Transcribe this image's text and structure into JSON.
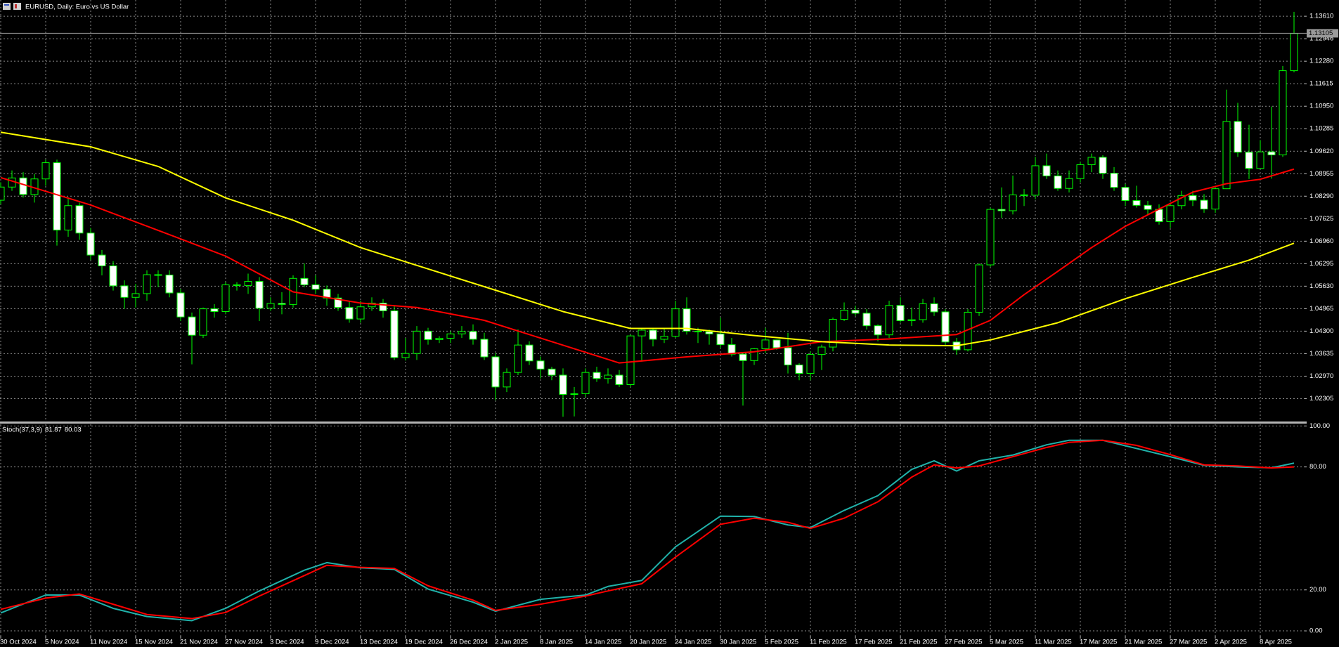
{
  "chart_data": [
    {
      "type": "candlestick",
      "title": "EURUSD, Daily:  Euro vs US Dollar",
      "categories": [
        "30 Oct 2024",
        null,
        null,
        null,
        "5 Nov 2024",
        null,
        null,
        null,
        "11 Nov 2024",
        null,
        null,
        null,
        "15 Nov 2024",
        null,
        null,
        null,
        "21 Nov 2024",
        null,
        null,
        null,
        "27 Nov 2024",
        null,
        null,
        null,
        "3 Dec 2024",
        null,
        null,
        null,
        "9 Dec 2024",
        null,
        null,
        null,
        "13 Dec 2024",
        null,
        null,
        null,
        "19 Dec 2024",
        null,
        null,
        null,
        "26 Dec 2024",
        null,
        null,
        null,
        "2 Jan 2025",
        null,
        null,
        null,
        "8 Jan 2025",
        null,
        null,
        null,
        "14 Jan 2025",
        null,
        null,
        null,
        "20 Jan 2025",
        null,
        null,
        null,
        "24 Jan 2025",
        null,
        null,
        null,
        "30 Jan 2025",
        null,
        null,
        null,
        "5 Feb 2025",
        null,
        null,
        null,
        "11 Feb 2025",
        null,
        null,
        null,
        "17 Feb 2025",
        null,
        null,
        null,
        "21 Feb 2025",
        null,
        null,
        null,
        "27 Feb 2025",
        null,
        null,
        null,
        "5 Mar 2025",
        null,
        null,
        null,
        "11 Mar 2025",
        null,
        null,
        null,
        "17 Mar 2025",
        null,
        null,
        null,
        "21 Mar 2025",
        null,
        null,
        null,
        "27 Mar 2025",
        null,
        null,
        null,
        "2 Apr 2025",
        null,
        null,
        null,
        "8 Apr 2025",
        null,
        null,
        null
      ],
      "open": [
        1.0817,
        1.0856,
        1.0883,
        1.0834,
        1.088,
        1.0928,
        1.0729,
        1.0801,
        1.072,
        1.0655,
        1.0623,
        1.0564,
        1.053,
        1.0541,
        1.0597,
        1.0596,
        1.0543,
        1.0472,
        1.0418,
        1.0496,
        1.0488,
        1.0567,
        1.0565,
        1.0577,
        1.0498,
        1.0512,
        1.0509,
        1.0586,
        1.0567,
        1.0554,
        1.0528,
        1.05,
        1.0466,
        1.0502,
        1.0513,
        1.049,
        1.0352,
        1.0364,
        1.043,
        1.0405,
        1.0409,
        1.0422,
        1.0429,
        1.0406,
        1.0354,
        1.0265,
        1.0308,
        1.0389,
        1.0342,
        1.0318,
        1.03,
        1.0243,
        1.0245,
        1.0308,
        1.029,
        1.03,
        1.0272,
        1.0416,
        1.0433,
        1.0406,
        1.0415,
        1.0496,
        1.043,
        1.0428,
        1.0422,
        1.039,
        1.0362,
        1.0343,
        1.0378,
        1.0404,
        1.0381,
        1.033,
        1.0305,
        1.0361,
        1.0383,
        1.0465,
        1.0492,
        1.0483,
        1.0446,
        1.0419,
        1.0506,
        1.0461,
        1.0464,
        1.0511,
        1.0487,
        1.0398,
        1.0375,
        1.0486,
        1.0626,
        1.079,
        1.0786,
        1.0833,
        1.0832,
        1.0919,
        1.0889,
        1.0852,
        1.0881,
        1.0922,
        1.0944,
        1.0897,
        1.0855,
        1.0816,
        1.0802,
        1.079,
        1.0754,
        1.0801,
        1.0831,
        1.0817,
        1.0791,
        1.0851,
        1.105,
        1.0959,
        1.0911,
        1.096,
        1.0951,
        1.12
      ],
      "high": [
        1.087,
        1.0905,
        1.09,
        1.0895,
        1.0937,
        1.0937,
        1.0826,
        1.081,
        1.0735,
        1.067,
        1.0637,
        1.058,
        1.057,
        1.061,
        1.061,
        1.061,
        1.0555,
        1.0485,
        1.05,
        1.051,
        1.0575,
        1.0575,
        1.06,
        1.059,
        1.053,
        1.0545,
        1.0595,
        1.063,
        1.0595,
        1.0565,
        1.054,
        1.052,
        1.052,
        1.053,
        1.0525,
        1.0505,
        1.041,
        1.0445,
        1.044,
        1.0415,
        1.043,
        1.0445,
        1.045,
        1.0425,
        1.0365,
        1.032,
        1.0435,
        1.04,
        1.0355,
        1.0325,
        1.032,
        1.0265,
        1.032,
        1.0325,
        1.032,
        1.0315,
        1.042,
        1.044,
        1.044,
        1.044,
        1.052,
        1.053,
        1.044,
        1.0435,
        1.047,
        1.041,
        1.0365,
        1.038,
        1.044,
        1.0405,
        1.0425,
        1.0335,
        1.037,
        1.039,
        1.047,
        1.0515,
        1.0505,
        1.0495,
        1.045,
        1.052,
        1.053,
        1.05,
        1.0525,
        1.053,
        1.0495,
        1.041,
        1.0495,
        1.063,
        1.0795,
        1.0855,
        1.089,
        1.085,
        1.0945,
        1.0955,
        1.0905,
        1.0905,
        1.093,
        1.0955,
        1.095,
        1.0915,
        1.0865,
        1.086,
        1.0815,
        1.0805,
        1.0805,
        1.0845,
        1.0845,
        1.0835,
        1.086,
        1.1144,
        1.1105,
        1.104,
        1.0995,
        1.1094,
        1.1214,
        1.1374
      ],
      "low": [
        1.0805,
        1.0845,
        1.0825,
        1.081,
        1.086,
        1.0683,
        1.0709,
        1.07,
        1.064,
        1.0595,
        1.055,
        1.0496,
        1.05,
        1.052,
        1.056,
        1.053,
        1.046,
        1.0332,
        1.041,
        1.047,
        1.048,
        1.055,
        1.054,
        1.046,
        1.049,
        1.048,
        1.05,
        1.056,
        1.054,
        1.0505,
        1.049,
        1.0455,
        1.0455,
        1.049,
        1.047,
        1.0345,
        1.0343,
        1.0345,
        1.039,
        1.0395,
        1.0395,
        1.041,
        1.039,
        1.0345,
        1.0226,
        1.025,
        1.03,
        1.033,
        1.029,
        1.0285,
        1.0177,
        1.0178,
        1.0235,
        1.028,
        1.0275,
        1.0265,
        1.0265,
        1.034,
        1.0385,
        1.0395,
        1.041,
        1.042,
        1.0395,
        1.039,
        1.038,
        1.0355,
        1.021,
        1.033,
        1.0365,
        1.0375,
        1.0305,
        1.0285,
        1.0285,
        1.0315,
        1.037,
        1.046,
        1.0475,
        1.0435,
        1.04,
        1.041,
        1.0455,
        1.0445,
        1.0455,
        1.0475,
        1.0385,
        1.036,
        1.037,
        1.0475,
        1.062,
        1.0765,
        1.0775,
        1.08,
        1.082,
        1.088,
        1.0845,
        1.084,
        1.087,
        1.09,
        1.088,
        1.0845,
        1.08,
        1.0795,
        1.0775,
        1.0745,
        1.0735,
        1.079,
        1.08,
        1.078,
        1.078,
        1.085,
        1.0945,
        1.088,
        1.091,
        1.0881,
        1.0945,
        1.1195
      ],
      "close": [
        1.0856,
        1.0883,
        1.0834,
        1.088,
        1.0928,
        1.0729,
        1.0801,
        1.072,
        1.0655,
        1.0623,
        1.0564,
        1.053,
        1.0541,
        1.0597,
        1.0596,
        1.0543,
        1.0472,
        1.0418,
        1.0496,
        1.0488,
        1.0567,
        1.0565,
        1.0577,
        1.0498,
        1.0512,
        1.0509,
        1.0586,
        1.0567,
        1.0554,
        1.0528,
        1.05,
        1.0466,
        1.0502,
        1.0513,
        1.049,
        1.0352,
        1.0364,
        1.043,
        1.0405,
        1.0409,
        1.0422,
        1.0429,
        1.0406,
        1.0354,
        1.0265,
        1.0308,
        1.0389,
        1.0342,
        1.0318,
        1.03,
        1.0243,
        1.0245,
        1.0308,
        1.029,
        1.03,
        1.0272,
        1.0416,
        1.0433,
        1.0406,
        1.0415,
        1.0496,
        1.043,
        1.0428,
        1.0422,
        1.039,
        1.0362,
        1.0343,
        1.0378,
        1.0404,
        1.0381,
        1.033,
        1.0305,
        1.0361,
        1.0383,
        1.0465,
        1.0492,
        1.0483,
        1.0446,
        1.0419,
        1.0506,
        1.0461,
        1.0464,
        1.0511,
        1.0487,
        1.0398,
        1.0375,
        1.0486,
        1.0626,
        1.079,
        1.0786,
        1.0833,
        1.0832,
        1.0919,
        1.0889,
        1.0852,
        1.0881,
        1.0922,
        1.0944,
        1.0897,
        1.0855,
        1.0816,
        1.0802,
        1.079,
        1.0754,
        1.0801,
        1.0831,
        1.0817,
        1.0791,
        1.0851,
        1.105,
        1.0959,
        1.0911,
        1.096,
        1.0951,
        1.12,
        1.131
      ],
      "wick_color": "#00ff00",
      "bull_fill": "#000000",
      "bear_fill": "#ffffff",
      "series": [
        {
          "color": "#ff0000",
          "x": [
            0,
            8,
            14,
            20,
            26,
            32,
            37,
            43,
            49,
            55,
            61,
            67,
            73,
            79,
            85,
            88,
            91,
            94,
            97,
            100,
            103,
            106,
            109,
            112,
            115
          ],
          "values": [
            1.0884,
            1.0803,
            1.0728,
            1.0652,
            1.0546,
            1.0513,
            1.05,
            1.0462,
            1.0399,
            1.0336,
            1.0354,
            1.0369,
            1.0399,
            1.0407,
            1.042,
            1.0462,
            1.0538,
            1.0607,
            1.0677,
            1.074,
            1.0791,
            1.0841,
            1.0866,
            1.0879,
            1.0909
          ]
        },
        {
          "color": "#ffff00",
          "x": [
            0,
            8,
            14,
            20,
            26,
            32,
            38,
            44,
            50,
            56,
            61,
            67,
            73,
            79,
            85,
            88,
            94,
            100,
            106,
            111,
            115
          ],
          "values": [
            1.1018,
            1.0975,
            1.0917,
            1.0824,
            1.0758,
            1.0677,
            1.0614,
            1.0551,
            1.0488,
            1.0438,
            1.0438,
            1.0417,
            1.0399,
            1.0389,
            1.0387,
            1.0404,
            1.0455,
            1.0526,
            1.0589,
            1.064,
            1.069
          ]
        }
      ],
      "current_price": 1.13105,
      "current_price_color": "#9a9a9a",
      "ylim": [
        1.0165,
        1.1409
      ],
      "yticks": [
        {
          "value": 1.1361,
          "label": "1.13610"
        },
        1.12946,
        {
          "value": 1.1228,
          "label": "1.12280"
        },
        1.11615,
        {
          "value": 1.1095,
          "label": "1.10950"
        },
        1.10285,
        {
          "value": 1.0962,
          "label": "1.09620"
        },
        1.08955,
        {
          "value": 1.0829,
          "label": "1.08290"
        },
        1.07625,
        {
          "value": 1.0696,
          "label": "1.06960"
        },
        1.06295,
        {
          "value": 1.0563,
          "label": "1.05630"
        },
        1.04965,
        {
          "value": 1.043,
          "label": "1.04300"
        },
        1.03635,
        {
          "value": 1.0297,
          "label": "1.02970"
        },
        1.02305
      ],
      "grid": true
    },
    {
      "type": "line",
      "title": "Stoch(37,3,9)",
      "series": [
        {
          "color": "#20b2aa",
          "x": [
            0,
            4,
            7,
            10,
            13,
            17,
            20,
            23,
            27,
            29,
            32,
            35,
            38,
            42,
            44,
            48,
            52,
            54,
            57,
            60,
            64,
            67,
            70,
            72,
            75,
            78,
            81,
            83,
            85,
            87,
            90,
            93,
            95,
            98,
            101,
            104,
            107,
            110,
            113,
            115
          ],
          "values": [
            8.75,
            17.5,
            17.5,
            11,
            7,
            5,
            11,
            19.5,
            29.6,
            33.3,
            30.8,
            30,
            20.4,
            14,
            9.6,
            15.4,
            17.5,
            21.7,
            24.6,
            41,
            56,
            55.8,
            51.7,
            50.4,
            58.8,
            66,
            78.8,
            83,
            78,
            83,
            85.8,
            90.8,
            93,
            93,
            89,
            85,
            80.8,
            80,
            79.6,
            81.87
          ]
        },
        {
          "color": "#ff0000",
          "x": [
            0,
            4,
            7,
            10,
            13,
            17,
            20,
            23,
            27,
            29,
            32,
            35,
            38,
            42,
            44,
            48,
            52,
            54,
            57,
            60,
            64,
            67,
            70,
            72,
            75,
            78,
            81,
            83,
            85,
            87,
            90,
            93,
            95,
            98,
            101,
            104,
            107,
            110,
            113,
            115
          ],
          "values": [
            10.5,
            16,
            18,
            13,
            8,
            6,
            9,
            17,
            27,
            32,
            31,
            30.5,
            22,
            15,
            10,
            13,
            17,
            19.5,
            23,
            36,
            52,
            55,
            53,
            50,
            55,
            63,
            75,
            81,
            79.5,
            80.5,
            85,
            89.5,
            92,
            93,
            90.5,
            86,
            81,
            80.5,
            79.5,
            80.03
          ]
        }
      ],
      "ylim": [
        -3.75,
        100.8
      ],
      "yticks": [
        {
          "value": 0,
          "label": "0.00"
        },
        {
          "value": 20,
          "label": "20.00"
        },
        {
          "value": 80,
          "label": "80.00"
        },
        {
          "value": 100,
          "label": "100.00"
        }
      ],
      "grid": true
    }
  ]
}
